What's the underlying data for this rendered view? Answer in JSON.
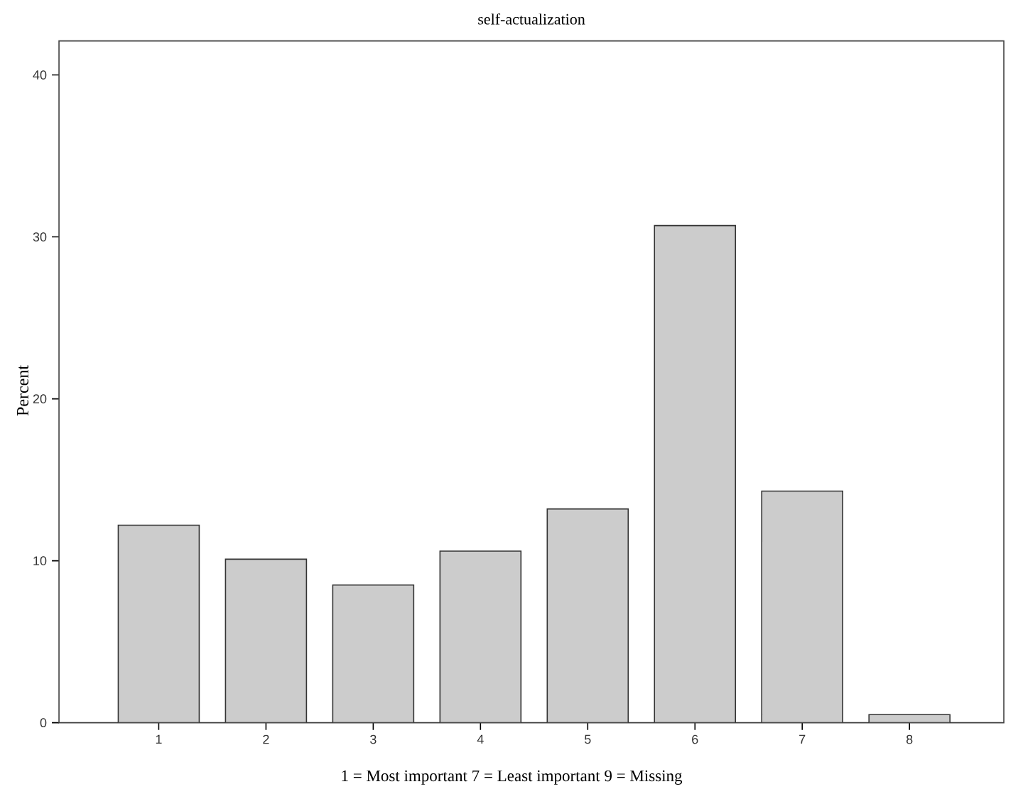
{
  "chart_data": {
    "type": "bar",
    "title": "self-actualization",
    "ylabel": "Percent",
    "categories": [
      "1",
      "2",
      "3",
      "4",
      "5",
      "6",
      "7",
      "8"
    ],
    "values": [
      12.2,
      10.1,
      8.5,
      10.6,
      13.2,
      30.7,
      14.3,
      0.5
    ],
    "color": "#cccccc",
    "ylim": [
      0,
      42.1
    ],
    "yticks": [
      0,
      10,
      20,
      30,
      40
    ],
    "annotations": [
      "1 = Most important   7 = Least important   9 = Missing"
    ],
    "grid": false
  }
}
